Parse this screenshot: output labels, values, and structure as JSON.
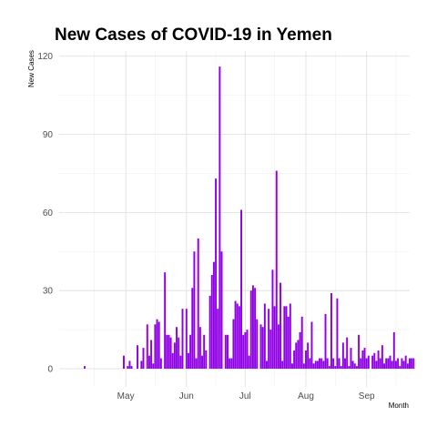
{
  "chart_data": {
    "type": "bar",
    "title": "New Cases of COVID-19 in Yemen",
    "xlabel": "Month",
    "ylabel": "New Cases",
    "ylim": [
      -7,
      122
    ],
    "yticks": [
      0,
      30,
      60,
      90,
      120
    ],
    "xlim": [
      "2020-03-28",
      "2020-09-23"
    ],
    "xticks": [
      {
        "date": "2020-05-01",
        "label": "May"
      },
      {
        "date": "2020-06-01",
        "label": "Jun"
      },
      {
        "date": "2020-07-01",
        "label": "Jul"
      },
      {
        "date": "2020-08-01",
        "label": "Aug"
      },
      {
        "date": "2020-09-01",
        "label": "Sep"
      }
    ],
    "grid": true,
    "bar_color": "#8f00e6",
    "start_date": "2020-04-10",
    "values": [
      1,
      0,
      0,
      0,
      0,
      0,
      0,
      0,
      0,
      0,
      0,
      0,
      0,
      0,
      0,
      0,
      0,
      0,
      0,
      0,
      5,
      0,
      1,
      3,
      1,
      0,
      0,
      9,
      0,
      3,
      8,
      0,
      17,
      5,
      11,
      2,
      17,
      19,
      18,
      4,
      0,
      37,
      13,
      13,
      12,
      6,
      10,
      16,
      12,
      5,
      23,
      0,
      23,
      6,
      13,
      31,
      45,
      4,
      50,
      16,
      5,
      13,
      7,
      0,
      28,
      36,
      41,
      73,
      23,
      116,
      45,
      0,
      13,
      13,
      4,
      4,
      19,
      26,
      25,
      24,
      61,
      13,
      14,
      15,
      5,
      30,
      32,
      31,
      19,
      0,
      17,
      16,
      25,
      3,
      23,
      15,
      38,
      24,
      76,
      17,
      33,
      3,
      24,
      24,
      20,
      25,
      2,
      7,
      10,
      11,
      14,
      20,
      2,
      7,
      10,
      4,
      18,
      2,
      3,
      3,
      4,
      4,
      3,
      21,
      4,
      1,
      29,
      4,
      1,
      27,
      4,
      1,
      10,
      4,
      12,
      1,
      8,
      3,
      2,
      1,
      13,
      4,
      7,
      8,
      4,
      5,
      0,
      5,
      6,
      3,
      7,
      4,
      9,
      2,
      4,
      4,
      5,
      3,
      14,
      3,
      4,
      1,
      4,
      3,
      5,
      2,
      4,
      4,
      4
    ]
  }
}
